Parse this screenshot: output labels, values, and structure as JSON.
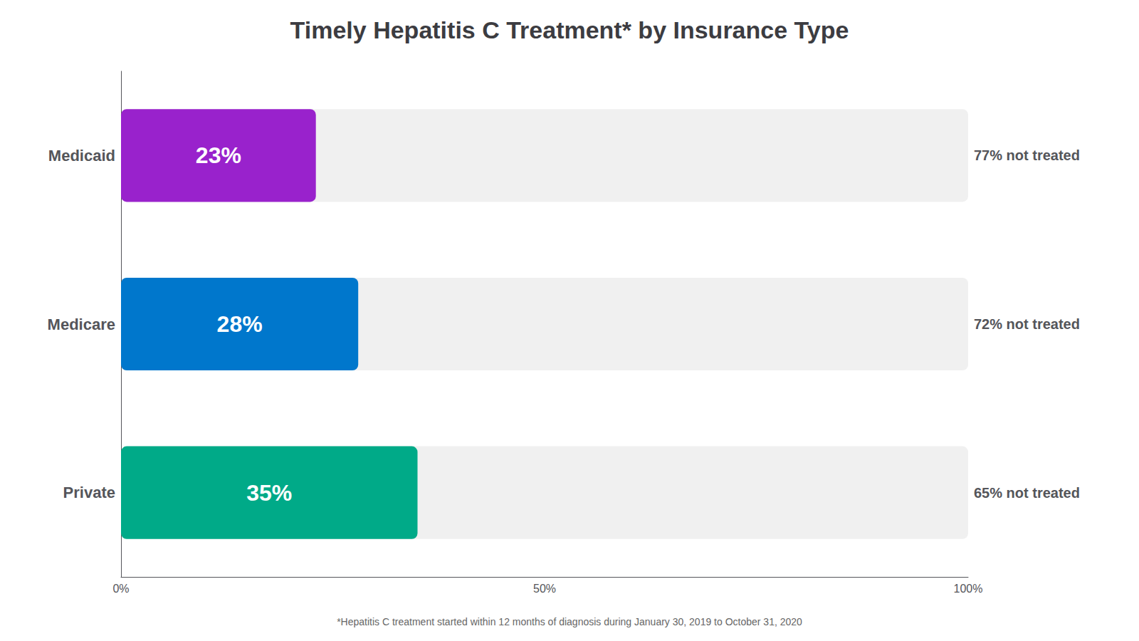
{
  "chart_data": {
    "type": "bar",
    "orientation": "horizontal",
    "title": "Timely Hepatitis C Treatment* by Insurance Type",
    "footnote": "*Hepatitis C treatment started within 12 months of diagnosis during January 30, 2019 to October 31, 2020",
    "categories": [
      "Medicaid",
      "Medicare",
      "Private"
    ],
    "values": [
      23,
      28,
      35
    ],
    "value_labels": [
      "23%",
      "28%",
      "35%"
    ],
    "data_labels": true,
    "annotations": [
      "77% not treated",
      "72% not treated",
      "65% not treated"
    ],
    "colors": [
      "#9922cc",
      "#0077cc",
      "#00aa88"
    ],
    "xlim": [
      0,
      100
    ],
    "xticks": [
      {
        "value": 0,
        "label": "0%"
      },
      {
        "value": 50,
        "label": "50%"
      },
      {
        "value": 100,
        "label": "100%"
      }
    ],
    "grid": false
  }
}
